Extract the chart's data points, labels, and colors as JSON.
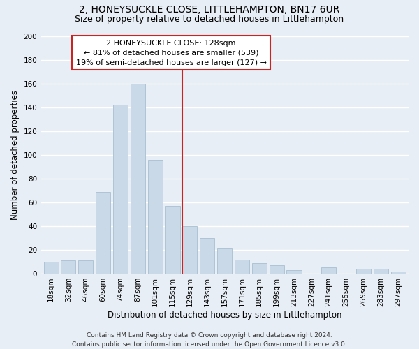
{
  "title": "2, HONEYSUCKLE CLOSE, LITTLEHAMPTON, BN17 6UR",
  "subtitle": "Size of property relative to detached houses in Littlehampton",
  "xlabel": "Distribution of detached houses by size in Littlehampton",
  "ylabel": "Number of detached properties",
  "categories": [
    "18sqm",
    "32sqm",
    "46sqm",
    "60sqm",
    "74sqm",
    "87sqm",
    "101sqm",
    "115sqm",
    "129sqm",
    "143sqm",
    "157sqm",
    "171sqm",
    "185sqm",
    "199sqm",
    "213sqm",
    "227sqm",
    "241sqm",
    "255sqm",
    "269sqm",
    "283sqm",
    "297sqm"
  ],
  "values": [
    10,
    11,
    11,
    69,
    142,
    160,
    96,
    57,
    40,
    30,
    21,
    12,
    9,
    7,
    3,
    0,
    5,
    0,
    4,
    4,
    2
  ],
  "bar_color": "#c9d9e8",
  "bar_edgecolor": "#a8bfd0",
  "bg_color": "#e8eef5",
  "grid_color": "#ffffff",
  "vline_x_index": 8,
  "vline_color": "#cc2222",
  "annotation_title": "2 HONEYSUCKLE CLOSE: 128sqm",
  "annotation_line1": "← 81% of detached houses are smaller (539)",
  "annotation_line2": "19% of semi-detached houses are larger (127) →",
  "annotation_box_color": "#cc2222",
  "annotation_bg": "#ffffff",
  "footer_line1": "Contains HM Land Registry data © Crown copyright and database right 2024.",
  "footer_line2": "Contains public sector information licensed under the Open Government Licence v3.0.",
  "ylim": [
    0,
    200
  ],
  "yticks": [
    0,
    20,
    40,
    60,
    80,
    100,
    120,
    140,
    160,
    180,
    200
  ],
  "title_fontsize": 10,
  "subtitle_fontsize": 9,
  "xlabel_fontsize": 8.5,
  "ylabel_fontsize": 8.5,
  "footer_fontsize": 6.5,
  "tick_fontsize": 7.5,
  "annotation_fontsize": 8.0
}
